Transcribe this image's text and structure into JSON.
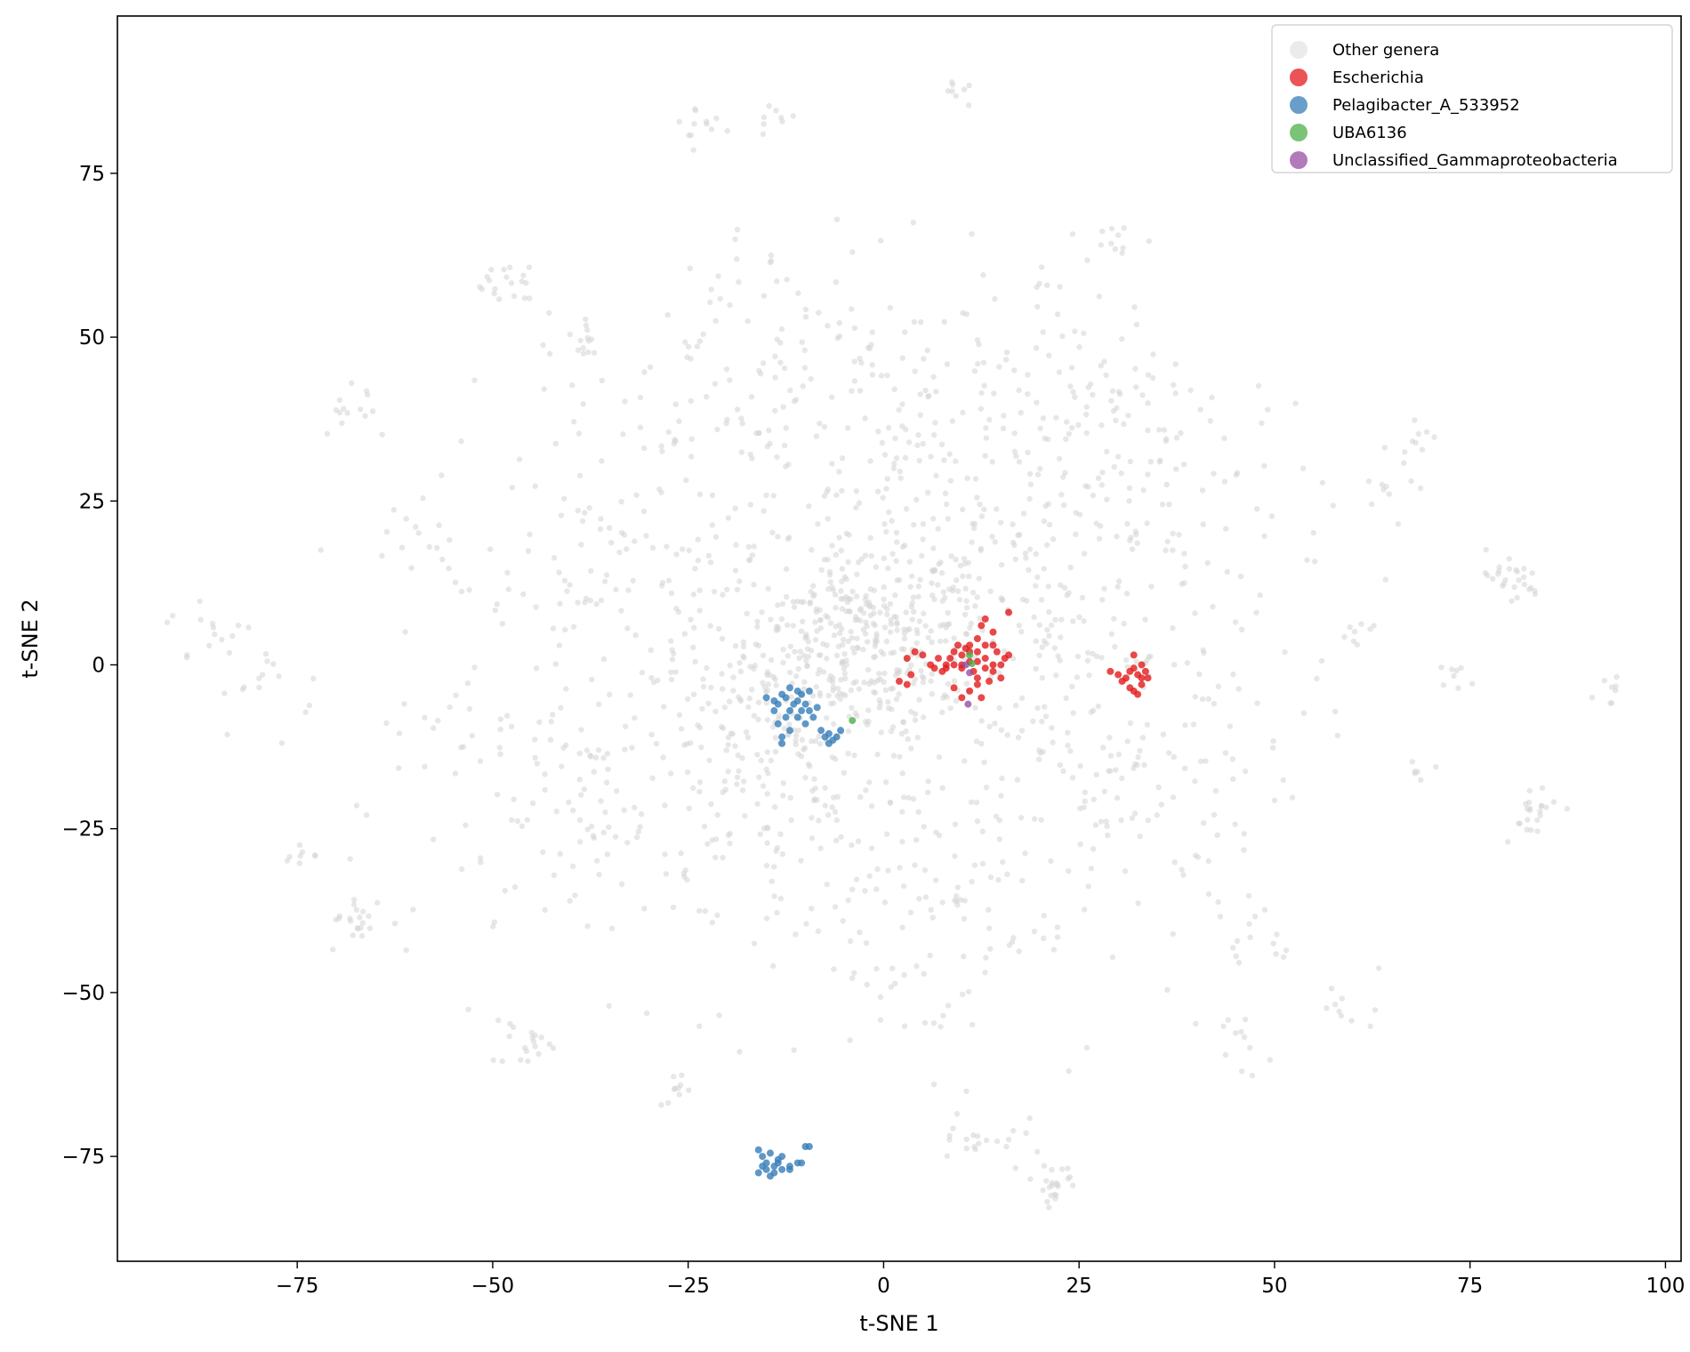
{
  "chart_data": {
    "type": "scatter",
    "title": "",
    "xlabel": "t-SNE 1",
    "ylabel": "t-SNE 2",
    "xlim": [
      -98,
      102
    ],
    "ylim": [
      -91,
      99
    ],
    "xticks": [
      -75,
      -50,
      -25,
      0,
      25,
      50,
      75,
      100
    ],
    "yticks": [
      -75,
      -50,
      -25,
      0,
      25,
      50,
      75
    ],
    "xtick_labels": [
      "−75",
      "−50",
      "−25",
      "0",
      "25",
      "50",
      "75",
      "100"
    ],
    "ytick_labels": [
      "−75",
      "−50",
      "−25",
      "0",
      "25",
      "50",
      "75"
    ],
    "grid": false,
    "legend_position": "top-right",
    "series": [
      {
        "name": "Other genera",
        "color": "#d3d3d3",
        "background": true,
        "clusters": [
          {
            "center": [
              -4,
              4
            ],
            "spread": 10,
            "count": 260
          },
          {
            "center": [
              10,
              10
            ],
            "spread": 16,
            "count": 220
          },
          {
            "center": [
              -12,
              -14
            ],
            "spread": 16,
            "count": 220
          },
          {
            "center": [
              28,
              -12
            ],
            "spread": 18,
            "count": 180
          },
          {
            "center": [
              -30,
              12
            ],
            "spread": 20,
            "count": 170
          },
          {
            "center": [
              35,
              25
            ],
            "spread": 16,
            "count": 120
          },
          {
            "center": [
              -35,
              -22
            ],
            "spread": 18,
            "count": 130
          },
          {
            "center": [
              0,
              35
            ],
            "spread": 18,
            "count": 120
          },
          {
            "center": [
              5,
              -38
            ],
            "spread": 16,
            "count": 110
          },
          {
            "center": [
              -20,
              45
            ],
            "spread": 14,
            "count": 80
          },
          {
            "center": [
              20,
              45
            ],
            "spread": 14,
            "count": 80
          },
          {
            "center": [
              -48,
              58
            ],
            "spread": 3,
            "count": 18
          },
          {
            "center": [
              -40,
              50
            ],
            "spread": 5,
            "count": 14
          },
          {
            "center": [
              -68,
              40
            ],
            "spread": 4,
            "count": 14
          },
          {
            "center": [
              -86,
              5
            ],
            "spread": 4,
            "count": 14
          },
          {
            "center": [
              -78,
              -3
            ],
            "spread": 5,
            "count": 16
          },
          {
            "center": [
              -67,
              -39
            ],
            "spread": 3,
            "count": 22
          },
          {
            "center": [
              -74,
              -30
            ],
            "spread": 2,
            "count": 8
          },
          {
            "center": [
              -46,
              -57
            ],
            "spread": 3,
            "count": 20
          },
          {
            "center": [
              -26,
              -65
            ],
            "spread": 2,
            "count": 10
          },
          {
            "center": [
              -23,
              82
            ],
            "spread": 3,
            "count": 12
          },
          {
            "center": [
              -14,
              84
            ],
            "spread": 2,
            "count": 8
          },
          {
            "center": [
              10,
              88
            ],
            "spread": 2,
            "count": 8
          },
          {
            "center": [
              12,
              -72
            ],
            "spread": 4,
            "count": 22
          },
          {
            "center": [
              22,
              -79
            ],
            "spread": 2,
            "count": 22
          },
          {
            "center": [
              80,
              13
            ],
            "spread": 3,
            "count": 26
          },
          {
            "center": [
              83,
              -22
            ],
            "spread": 3,
            "count": 22
          },
          {
            "center": [
              92,
              -4
            ],
            "spread": 2,
            "count": 8
          },
          {
            "center": [
              65,
              27
            ],
            "spread": 2,
            "count": 8
          },
          {
            "center": [
              60,
              5
            ],
            "spread": 2,
            "count": 8
          },
          {
            "center": [
              68,
              35
            ],
            "spread": 2,
            "count": 10
          },
          {
            "center": [
              45,
              -58
            ],
            "spread": 3,
            "count": 12
          },
          {
            "center": [
              48,
              -42
            ],
            "spread": 4,
            "count": 14
          },
          {
            "center": [
              60,
              -52
            ],
            "spread": 3,
            "count": 10
          },
          {
            "center": [
              30,
              64
            ],
            "spread": 3,
            "count": 10
          },
          {
            "center": [
              -60,
              20
            ],
            "spread": 5,
            "count": 14
          },
          {
            "center": [
              -55,
              -10
            ],
            "spread": 5,
            "count": 14
          },
          {
            "center": [
              73,
              -2
            ],
            "spread": 2,
            "count": 8
          },
          {
            "center": [
              68,
              -15
            ],
            "spread": 2,
            "count": 6
          }
        ]
      },
      {
        "name": "Escherichia",
        "color": "#e41a1c",
        "points": [
          [
            3,
            1
          ],
          [
            4,
            2
          ],
          [
            5,
            1.5
          ],
          [
            6,
            0
          ],
          [
            7,
            1
          ],
          [
            7.5,
            -1
          ],
          [
            8,
            0
          ],
          [
            8.5,
            1
          ],
          [
            9,
            2
          ],
          [
            9,
            0
          ],
          [
            10,
            1.5
          ],
          [
            10,
            -0.5
          ],
          [
            10.5,
            2.5
          ],
          [
            11,
            0.5
          ],
          [
            11,
            3
          ],
          [
            11.5,
            -1
          ],
          [
            12,
            2
          ],
          [
            12,
            4
          ],
          [
            12.5,
            6
          ],
          [
            12,
            -2
          ],
          [
            13,
            1
          ],
          [
            13,
            3
          ],
          [
            13.5,
            -2.5
          ],
          [
            14,
            0
          ],
          [
            14,
            -1
          ],
          [
            14.5,
            2
          ],
          [
            15,
            -2
          ],
          [
            15,
            0
          ],
          [
            16,
            1.5
          ],
          [
            14,
            5
          ],
          [
            16,
            8
          ],
          [
            13,
            7
          ],
          [
            9,
            -3.5
          ],
          [
            10,
            -5
          ],
          [
            11,
            -4
          ],
          [
            12,
            -3
          ],
          [
            12.5,
            -5
          ],
          [
            2,
            -2.5
          ],
          [
            3,
            -3
          ],
          [
            3.5,
            -1.5
          ],
          [
            9.5,
            3
          ],
          [
            11,
            2
          ],
          [
            8,
            -0.5
          ],
          [
            12,
            0.5
          ],
          [
            13,
            -0.5
          ],
          [
            10,
            0
          ],
          [
            6.5,
            -0.5
          ],
          [
            15.5,
            1
          ],
          [
            14,
            3
          ],
          [
            29,
            -1
          ],
          [
            30,
            -1.5
          ],
          [
            30.5,
            -2.5
          ],
          [
            31,
            -2
          ],
          [
            31.5,
            -1
          ],
          [
            32,
            -0.5
          ],
          [
            32,
            1.5
          ],
          [
            32.5,
            -1.5
          ],
          [
            33,
            -2
          ],
          [
            33,
            -3
          ],
          [
            33.5,
            -1
          ],
          [
            33,
            0
          ],
          [
            32,
            -4
          ],
          [
            32.5,
            -4.5
          ],
          [
            31.5,
            -3.5
          ],
          [
            33.8,
            -2
          ]
        ]
      },
      {
        "name": "Pelagibacter_A_533952",
        "color": "#377eb8",
        "points": [
          [
            -15,
            -5
          ],
          [
            -14,
            -5.5
          ],
          [
            -13.5,
            -6
          ],
          [
            -13,
            -4.5
          ],
          [
            -12.5,
            -5
          ],
          [
            -12,
            -7
          ],
          [
            -12,
            -3.5
          ],
          [
            -11.5,
            -6
          ],
          [
            -11,
            -5.5
          ],
          [
            -11,
            -8
          ],
          [
            -10.5,
            -7
          ],
          [
            -10,
            -6
          ],
          [
            -10,
            -9
          ],
          [
            -9.5,
            -7
          ],
          [
            -9,
            -8
          ],
          [
            -9.5,
            -4
          ],
          [
            -11,
            -4
          ],
          [
            -12.5,
            -8
          ],
          [
            -13,
            -11
          ],
          [
            -13,
            -12
          ],
          [
            -13.5,
            -9
          ],
          [
            -12,
            -10
          ],
          [
            -14,
            -7
          ],
          [
            -8,
            -10
          ],
          [
            -7.5,
            -11
          ],
          [
            -7,
            -10.5
          ],
          [
            -6.5,
            -11.5
          ],
          [
            -6,
            -11
          ],
          [
            -5.5,
            -10
          ],
          [
            -7,
            -12
          ],
          [
            -8.5,
            -6.5
          ],
          [
            -10.5,
            -4.5
          ],
          [
            -16,
            -74
          ],
          [
            -15.5,
            -75
          ],
          [
            -15,
            -76
          ],
          [
            -14.5,
            -74.5
          ],
          [
            -14,
            -76.5
          ],
          [
            -13.5,
            -75.5
          ],
          [
            -13,
            -77
          ],
          [
            -14,
            -77.5
          ],
          [
            -15,
            -77
          ],
          [
            -16,
            -77.5
          ],
          [
            -13,
            -75
          ],
          [
            -12,
            -77
          ],
          [
            -11,
            -76
          ],
          [
            -10.5,
            -76
          ],
          [
            -10,
            -73.5
          ],
          [
            -9.5,
            -73.5
          ],
          [
            -14.5,
            -78
          ],
          [
            -13.5,
            -76
          ],
          [
            -15.5,
            -76.5
          ],
          [
            -12,
            -76.5
          ]
        ]
      },
      {
        "name": "UBA6136",
        "color": "#4daf4a",
        "points": [
          [
            -4,
            -8.5
          ],
          [
            11,
            1.5
          ],
          [
            11.3,
            0.2
          ]
        ]
      },
      {
        "name": "Unclassified_Gammaproteobacteria",
        "color": "#984ea3",
        "points": [
          [
            10.5,
            0
          ],
          [
            11,
            -1.2
          ],
          [
            10.8,
            -6
          ]
        ]
      }
    ]
  }
}
